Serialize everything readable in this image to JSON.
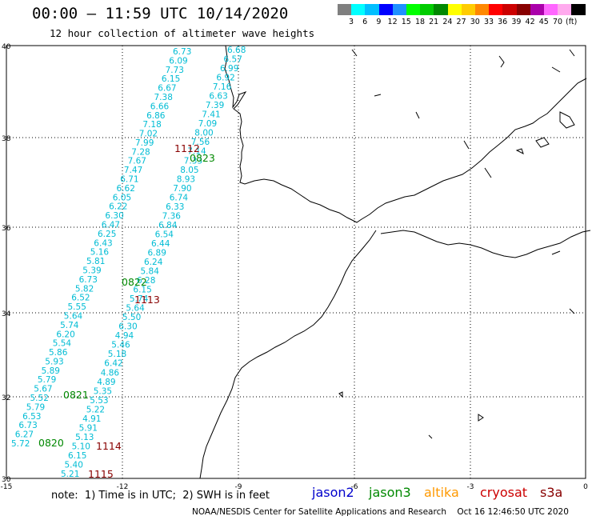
{
  "header": {
    "title": "00:00 – 11:59 UTC 10/14/2020",
    "subtitle": "12 hour collection of altimeter wave heights"
  },
  "legend": {
    "colors": [
      "#7f7f7f",
      "#00ffff",
      "#00bfff",
      "#0000ff",
      "#1e90ff",
      "#00ff00",
      "#00cc00",
      "#008800",
      "#ffff00",
      "#ffcc00",
      "#ff8800",
      "#ff0000",
      "#cc0000",
      "#880000",
      "#aa00aa",
      "#ff66ff",
      "#ffaaee",
      "#000000"
    ],
    "labels": [
      "3",
      "6",
      "9",
      "12",
      "15",
      "18",
      "21",
      "24",
      "27",
      "30",
      "33",
      "36",
      "39",
      "42",
      "45",
      "70",
      "(ft)"
    ]
  },
  "axes": {
    "lon_labels": [
      "-15",
      "-12",
      "-9",
      "-6",
      "-3",
      "0"
    ],
    "lat_labels": [
      "40",
      "38",
      "36",
      "34",
      "32",
      "30"
    ]
  },
  "track_values": [
    "6.73",
    "6.09",
    "7.73",
    "6.15",
    "6.67",
    "7.38",
    "6.66",
    "6.86",
    "7.18",
    "7.02",
    "7.99",
    "7.28",
    "7.67",
    "7.47",
    "6.71",
    "6.62",
    "6.05",
    "6.22",
    "6.30",
    "6.47",
    "6.25",
    "6.43",
    "5.16",
    "5.81",
    "5.39",
    "6.73",
    "5.82",
    "6.52",
    "5.55",
    "5.64",
    "5.74",
    "6.20",
    "5.54",
    "5.86",
    "5.93",
    "5.89",
    "5.79",
    "5.67",
    "5.52",
    "5.79",
    "6.53",
    "6.73",
    "6.27",
    "5.72",
    "6.68",
    "6.57",
    "6.99",
    "6.92",
    "7.16",
    "6.63",
    "7.39",
    "7.41",
    "7.09",
    "8.00",
    "7.56",
    "7.14",
    "7.33",
    "8.05",
    "8.93",
    "7.90",
    "6.74",
    "6.33",
    "7.36",
    "6.84",
    "6.54",
    "6.44",
    "6.89",
    "6.24",
    "5.84",
    "6.28",
    "6.15",
    "5.74",
    "5.64",
    "5.50",
    "6.30",
    "4.94",
    "5.46",
    "5.18",
    "6.42",
    "4.86",
    "4.89",
    "5.35",
    "5.53",
    "5.22",
    "4.91",
    "5.91",
    "5.13",
    "5.10",
    "6.15",
    "5.40",
    "5.21"
  ],
  "pass_labels": [
    {
      "text": "1112",
      "color": "#880000"
    },
    {
      "text": "0823",
      "color": "#008800"
    },
    {
      "text": "0822",
      "color": "#008800"
    },
    {
      "text": "1113",
      "color": "#880000"
    },
    {
      "text": "0821",
      "color": "#008800"
    },
    {
      "text": "0820",
      "color": "#008800"
    },
    {
      "text": "1114",
      "color": "#880000"
    },
    {
      "text": "1115",
      "color": "#880000"
    }
  ],
  "note": "note:  1) Time is in UTC;  2) SWH is in feet",
  "satellites": [
    {
      "name": "jason2",
      "color": "#0000cc"
    },
    {
      "name": "jason3",
      "color": "#008800"
    },
    {
      "name": "altika",
      "color": "#ff9900"
    },
    {
      "name": "cryosat",
      "color": "#cc0000"
    },
    {
      "name": "s3a",
      "color": "#880000"
    }
  ],
  "footer": "NOAA/NESDIS Center for Satellite Applications and Research    Oct 16 12:46:50 UTC 2020"
}
